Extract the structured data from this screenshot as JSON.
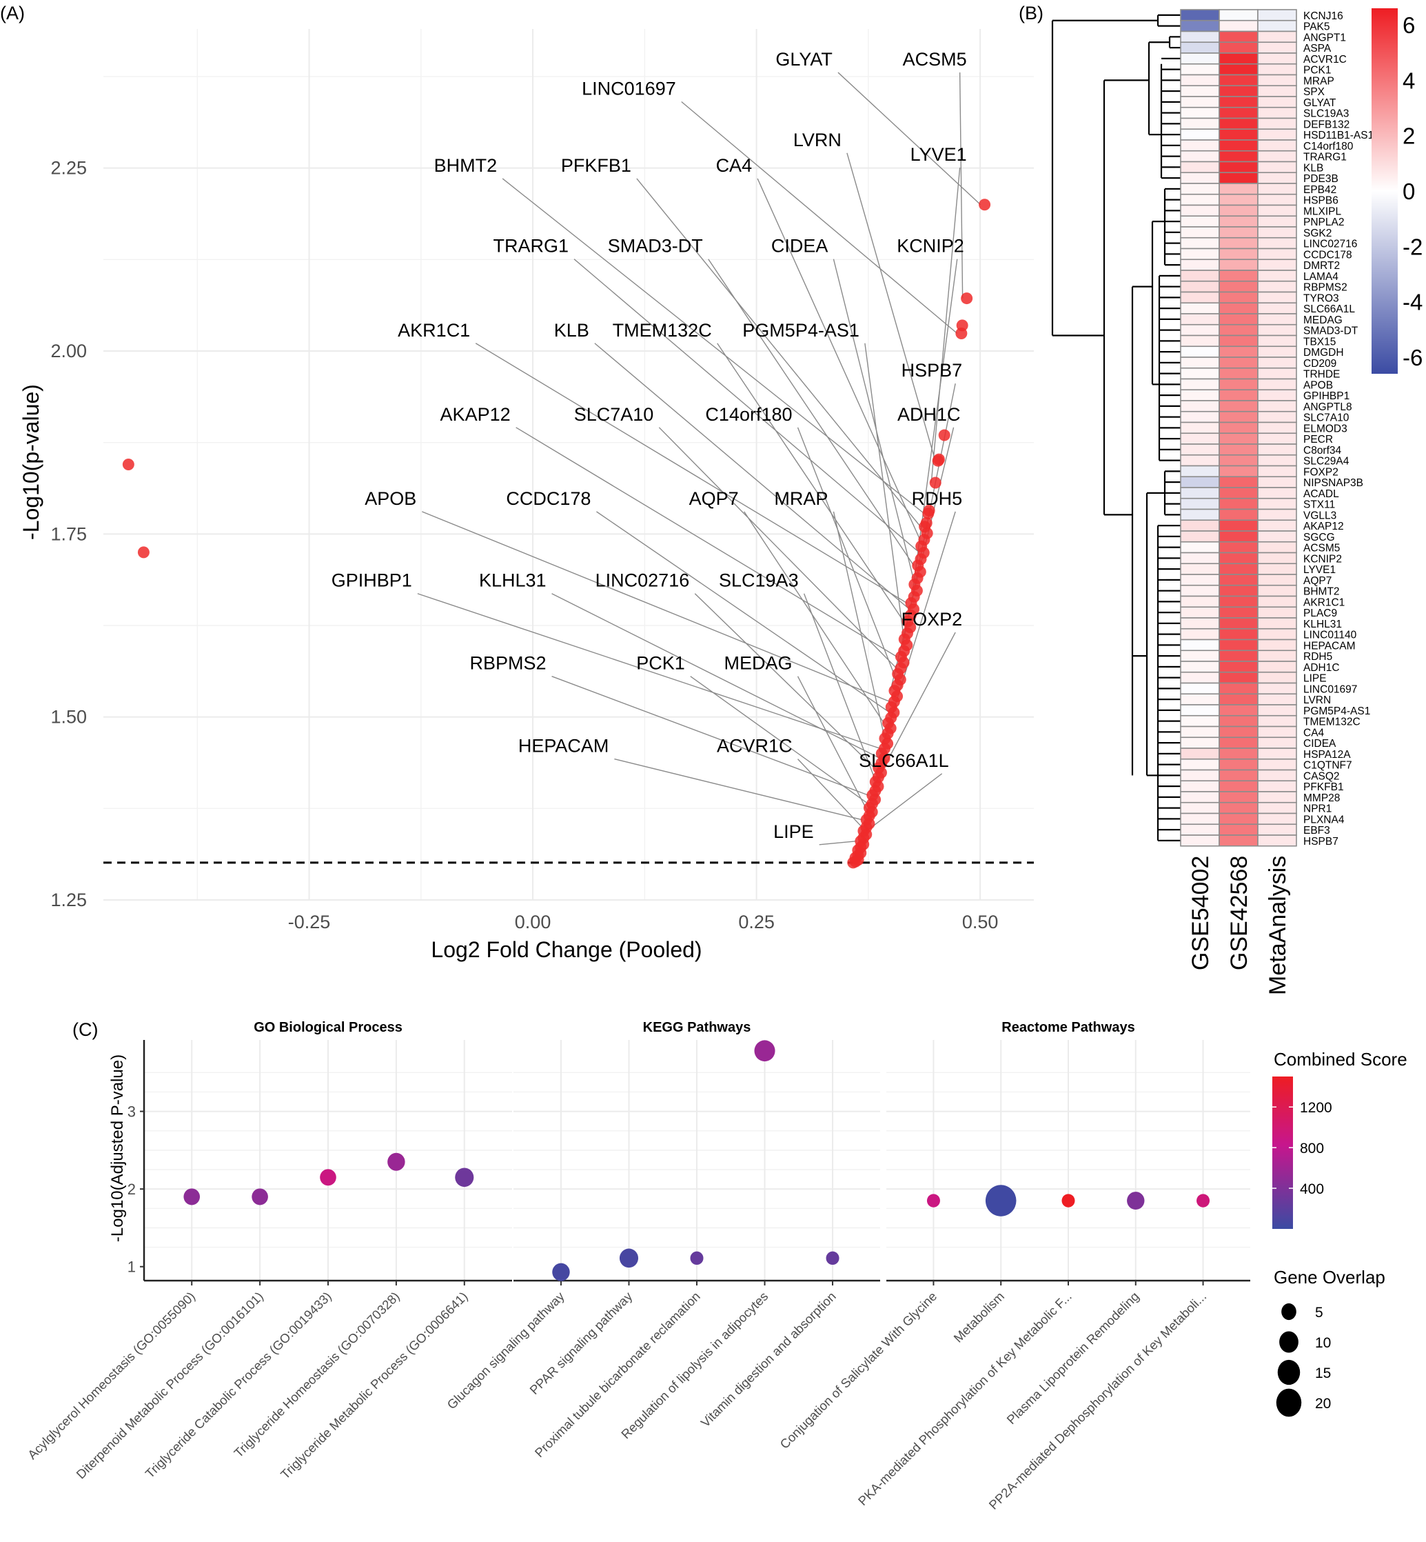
{
  "panels": {
    "A": "(A)",
    "B": "(B)",
    "C": "(C)"
  },
  "chart_data": [
    {
      "id": "volcano",
      "type": "scatter",
      "title": "",
      "xlabel": "Log2 Fold Change (Pooled)",
      "ylabel": "-Log10(p-value)",
      "xlim": [
        -0.48,
        0.56
      ],
      "ylim": [
        1.25,
        2.44
      ],
      "xticks": [
        "-0.25",
        "0.00",
        "0.25",
        "0.50"
      ],
      "xtick_values": [
        -0.25,
        0,
        0.25,
        0.5
      ],
      "yticks": [
        "1.25",
        "1.50",
        "1.75",
        "2.00",
        "2.25"
      ],
      "ytick_values": [
        1.25,
        1.5,
        1.75,
        2.0,
        2.25
      ],
      "threshold_y": 1.301,
      "grid": true,
      "point_color": "#EE2A2A",
      "points_outliers": [
        [
          -0.452,
          1.845
        ],
        [
          -0.435,
          1.725
        ]
      ],
      "points_top": [
        [
          0.505,
          2.2
        ],
        [
          0.485,
          2.072
        ],
        [
          0.48,
          2.035
        ],
        [
          0.479,
          2.024
        ],
        [
          0.46,
          1.885
        ],
        [
          0.454,
          1.852
        ],
        [
          0.453,
          1.85
        ],
        [
          0.45,
          1.82
        ],
        [
          0.443,
          1.782
        ],
        [
          0.442,
          1.778
        ],
        [
          0.44,
          1.765
        ]
      ],
      "trend": {
        "x_start": 0.36,
        "y_start": 1.301,
        "x_end": 0.44,
        "y_end": 1.76,
        "n": 70
      },
      "labels": [
        {
          "gene": "GLYAT",
          "lx": 0.335,
          "ly": 2.39
        },
        {
          "gene": "ACSM5",
          "lx": 0.485,
          "ly": 2.39
        },
        {
          "gene": "LINC01697",
          "lx": 0.16,
          "ly": 2.35
        },
        {
          "gene": "LVRN",
          "lx": 0.345,
          "ly": 2.28
        },
        {
          "gene": "LYVE1",
          "lx": 0.485,
          "ly": 2.26
        },
        {
          "gene": "BHMT2",
          "lx": -0.04,
          "ly": 2.245
        },
        {
          "gene": "PFKFB1",
          "lx": 0.11,
          "ly": 2.245
        },
        {
          "gene": "CA4",
          "lx": 0.245,
          "ly": 2.245
        },
        {
          "gene": "TRARG1",
          "lx": 0.04,
          "ly": 2.135
        },
        {
          "gene": "SMAD3-DT",
          "lx": 0.19,
          "ly": 2.135
        },
        {
          "gene": "CIDEA",
          "lx": 0.33,
          "ly": 2.135
        },
        {
          "gene": "KCNIP2",
          "lx": 0.482,
          "ly": 2.135
        },
        {
          "gene": "AKR1C1",
          "lx": -0.07,
          "ly": 2.02
        },
        {
          "gene": "KLB",
          "lx": 0.063,
          "ly": 2.02
        },
        {
          "gene": "TMEM132C",
          "lx": 0.2,
          "ly": 2.02
        },
        {
          "gene": "PGM5P4-AS1",
          "lx": 0.365,
          "ly": 2.02
        },
        {
          "gene": "HSPB7",
          "lx": 0.48,
          "ly": 1.965
        },
        {
          "gene": "AKAP12",
          "lx": -0.025,
          "ly": 1.905
        },
        {
          "gene": "SLC7A10",
          "lx": 0.135,
          "ly": 1.905
        },
        {
          "gene": "C14orf180",
          "lx": 0.29,
          "ly": 1.905
        },
        {
          "gene": "ADH1C",
          "lx": 0.478,
          "ly": 1.905
        },
        {
          "gene": "APOB",
          "lx": -0.13,
          "ly": 1.79
        },
        {
          "gene": "CCDC178",
          "lx": 0.065,
          "ly": 1.79
        },
        {
          "gene": "AQP7",
          "lx": 0.23,
          "ly": 1.79
        },
        {
          "gene": "MRAP",
          "lx": 0.33,
          "ly": 1.79
        },
        {
          "gene": "RDH5",
          "lx": 0.48,
          "ly": 1.79
        },
        {
          "gene": "GPIHBP1",
          "lx": -0.135,
          "ly": 1.678
        },
        {
          "gene": "KLHL31",
          "lx": 0.015,
          "ly": 1.678
        },
        {
          "gene": "LINC02716",
          "lx": 0.175,
          "ly": 1.678
        },
        {
          "gene": "SLC19A3",
          "lx": 0.297,
          "ly": 1.678
        },
        {
          "gene": "FOXP2",
          "lx": 0.48,
          "ly": 1.625
        },
        {
          "gene": "RBPMS2",
          "lx": 0.015,
          "ly": 1.565
        },
        {
          "gene": "PCK1",
          "lx": 0.17,
          "ly": 1.565
        },
        {
          "gene": "MEDAG",
          "lx": 0.29,
          "ly": 1.565
        },
        {
          "gene": "HEPACAM",
          "lx": 0.085,
          "ly": 1.452
        },
        {
          "gene": "ACVR1C",
          "lx": 0.29,
          "ly": 1.452
        },
        {
          "gene": "SLC66A1L",
          "lx": 0.465,
          "ly": 1.432
        },
        {
          "gene": "LIPE",
          "lx": 0.314,
          "ly": 1.335
        }
      ]
    },
    {
      "id": "heatmap",
      "type": "heatmap",
      "columns": [
        "GSE54002",
        "GSE42568",
        "MetaAnalysis"
      ],
      "rows": [
        "KCNJ16",
        "PAK5",
        "ANGPT1",
        "ASPA",
        "ACVR1C",
        "PCK1",
        "MRAP",
        "SPX",
        "GLYAT",
        "SLC19A3",
        "DEFB132",
        "HSD11B1-AS1",
        "C14orf180",
        "TRARG1",
        "KLB",
        "PDE3B",
        "EPB42",
        "HSPB6",
        "MLXIPL",
        "PNPLA2",
        "SGK2",
        "LINC02716",
        "CCDC178",
        "DMRT2",
        "LAMA4",
        "RBPMS2",
        "TYRO3",
        "SLC66A1L",
        "MEDAG",
        "SMAD3-DT",
        "TBX15",
        "DMGDH",
        "CD209",
        "TRHDE",
        "APOB",
        "GPIHBP1",
        "ANGPTL8",
        "SLC7A10",
        "ELMOD3",
        "PECR",
        "C8orf34",
        "SLC29A4",
        "FOXP2",
        "NIPSNAP3B",
        "ACADL",
        "STX11",
        "VGLL3",
        "AKAP12",
        "SGCG",
        "ACSM5",
        "KCNIP2",
        "LYVE1",
        "AQP7",
        "BHMT2",
        "AKR1C1",
        "PLAC9",
        "KLHL31",
        "LINC01140",
        "HEPACAM",
        "RDH5",
        "ADH1C",
        "LIPE",
        "LINC01697",
        "LVRN",
        "PGM5P4-AS1",
        "TMEM132C",
        "CA4",
        "CIDEA",
        "HSPA12A",
        "C1QTNF7",
        "CASQ2",
        "PFKFB1",
        "MMP28",
        "NPR1",
        "PLXNA4",
        "EBF3",
        "HSPB7"
      ],
      "values": [
        [
          -5.5,
          -0.2,
          -0.6
        ],
        [
          -4.5,
          0.4,
          -0.6
        ],
        [
          -0.8,
          5.0,
          0.7
        ],
        [
          -1.3,
          5.0,
          0.7
        ],
        [
          -0.3,
          6.2,
          0.7
        ],
        [
          0.2,
          6.2,
          0.7
        ],
        [
          0.4,
          5.7,
          0.7
        ],
        [
          0.3,
          5.8,
          0.7
        ],
        [
          0.3,
          5.8,
          0.7
        ],
        [
          0.2,
          5.8,
          0.7
        ],
        [
          0.3,
          6.0,
          0.7
        ],
        [
          -0.1,
          6.0,
          0.7
        ],
        [
          0.4,
          6.0,
          0.7
        ],
        [
          0.4,
          6.0,
          0.7
        ],
        [
          0.7,
          6.1,
          0.7
        ],
        [
          0.4,
          6.2,
          0.7
        ],
        [
          0.3,
          2.0,
          0.7
        ],
        [
          0.3,
          2.0,
          0.7
        ],
        [
          0.4,
          2.2,
          0.7
        ],
        [
          0.3,
          2.2,
          0.7
        ],
        [
          0.3,
          2.2,
          0.7
        ],
        [
          0.3,
          2.3,
          0.7
        ],
        [
          0.3,
          2.3,
          0.7
        ],
        [
          0.4,
          2.3,
          0.7
        ],
        [
          1.0,
          3.6,
          0.7
        ],
        [
          1.0,
          3.8,
          0.7
        ],
        [
          0.9,
          3.8,
          0.7
        ],
        [
          0.3,
          3.9,
          0.7
        ],
        [
          0.6,
          3.9,
          0.7
        ],
        [
          0.4,
          3.8,
          0.7
        ],
        [
          0.5,
          3.9,
          0.7
        ],
        [
          -0.1,
          3.5,
          0.7
        ],
        [
          0.3,
          3.6,
          0.7
        ],
        [
          0.2,
          3.6,
          0.7
        ],
        [
          0.3,
          3.6,
          0.7
        ],
        [
          0.3,
          3.6,
          0.7
        ],
        [
          0.4,
          3.5,
          0.7
        ],
        [
          0.4,
          3.5,
          0.7
        ],
        [
          0.5,
          3.5,
          0.7
        ],
        [
          0.6,
          3.4,
          0.7
        ],
        [
          0.6,
          3.4,
          0.7
        ],
        [
          0.6,
          3.4,
          0.7
        ],
        [
          -0.7,
          3.3,
          0.7
        ],
        [
          -1.6,
          4.4,
          0.7
        ],
        [
          -0.8,
          4.4,
          0.7
        ],
        [
          -0.8,
          4.4,
          0.7
        ],
        [
          -0.7,
          4.3,
          0.7
        ],
        [
          1.0,
          5.2,
          0.7
        ],
        [
          0.9,
          5.2,
          0.7
        ],
        [
          0.2,
          4.8,
          0.8
        ],
        [
          0.4,
          4.9,
          0.8
        ],
        [
          0.5,
          4.9,
          0.8
        ],
        [
          0.4,
          4.9,
          0.8
        ],
        [
          0.4,
          5.0,
          0.8
        ],
        [
          0.5,
          5.0,
          0.8
        ],
        [
          0.5,
          5.0,
          0.8
        ],
        [
          0.5,
          5.1,
          0.8
        ],
        [
          0.5,
          5.2,
          0.8
        ],
        [
          -0.1,
          5.2,
          0.8
        ],
        [
          0.3,
          5.1,
          0.8
        ],
        [
          0.3,
          5.1,
          0.8
        ],
        [
          0.4,
          5.2,
          0.8
        ],
        [
          -0.1,
          4.5,
          0.7
        ],
        [
          0.3,
          4.5,
          0.7
        ],
        [
          -0.1,
          4.0,
          0.7
        ],
        [
          0.2,
          4.1,
          0.7
        ],
        [
          0.3,
          4.1,
          0.7
        ],
        [
          0.3,
          4.2,
          0.7
        ],
        [
          1.0,
          3.9,
          0.7
        ],
        [
          0.3,
          3.9,
          0.7
        ],
        [
          0.4,
          3.9,
          0.7
        ],
        [
          0.4,
          4.0,
          0.7
        ],
        [
          0.4,
          3.9,
          0.7
        ],
        [
          0.4,
          3.9,
          0.7
        ],
        [
          0.4,
          3.9,
          0.7
        ],
        [
          0.4,
          3.9,
          0.7
        ],
        [
          0.4,
          3.8,
          0.7
        ]
      ],
      "colorbar": {
        "ticks": [
          "6",
          "4",
          "2",
          "0",
          "-2",
          "-4",
          "-6"
        ],
        "tick_values": [
          6,
          4,
          2,
          0,
          -2,
          -4,
          -6
        ],
        "low": "#3B4BA3",
        "mid": "#FFFFFF",
        "high": "#EE1D23",
        "range": [
          -6.6,
          6.6
        ]
      }
    },
    {
      "id": "enrichment",
      "type": "scatter",
      "ylabel": "-Log10(Adjusted P-value)",
      "ylim": [
        0.82,
        3.92
      ],
      "yticks": [
        "1",
        "2",
        "3"
      ],
      "ytick_values": [
        1,
        2,
        3
      ],
      "facets": [
        {
          "title": "GO Biological Process",
          "categories": [
            "Acylglycerol Homeostasis (GO:0055090)",
            "Diterpenoid Metabolic Process (GO:0016101)",
            "Triglyceride Catabolic Process (GO:0019433)",
            "Triglyceride Homeostasis (GO:0070328)",
            "Triglyceride Metabolic Process (GO:0006641)"
          ],
          "values": [
            1.9,
            1.9,
            2.15,
            2.35,
            2.15
          ],
          "scores": [
            480,
            480,
            900,
            560,
            300
          ],
          "overlap": [
            4,
            4,
            4,
            5,
            6
          ]
        },
        {
          "title": "KEGG Pathways",
          "categories": [
            "Glucagon signaling pathway",
            "PPAR signaling pathway",
            "Proximal tubule bicarbonate reclamation",
            "Regulation of lipolysis in adipocytes",
            "Vitamin digestion and absorption"
          ],
          "values": [
            0.93,
            1.11,
            1.11,
            3.78,
            1.11
          ],
          "scores": [
            60,
            80,
            250,
            560,
            250
          ],
          "overlap": [
            5,
            6,
            2,
            8,
            2
          ]
        },
        {
          "title": "Reactome Pathways",
          "categories": [
            "Conjugation of Salicylate With Glycine",
            "Metabolism",
            "PKA-mediated Phosphorylation of Key Metabolic F...",
            "Plasma Lipoprotein Remodeling",
            "PP2A-mediated Dephosphorylation of Key Metaboli..."
          ],
          "values": [
            1.85,
            1.85,
            1.85,
            1.85,
            1.85
          ],
          "scores": [
            900,
            30,
            1500,
            400,
            950
          ],
          "overlap": [
            2,
            22,
            2,
            5,
            2
          ]
        }
      ],
      "color_legend": {
        "title": "Combined Score",
        "ticks": [
          "1200",
          "800",
          "400"
        ],
        "tick_values": [
          1200,
          800,
          400
        ],
        "range": [
          0,
          1500
        ],
        "low": "#3B4BA3",
        "mid": "#C6168D",
        "high": "#EE1D23"
      },
      "size_legend": {
        "title": "Gene Overlap",
        "ticks": [
          "5",
          "10",
          "15",
          "20"
        ],
        "tick_values": [
          5,
          10,
          15,
          20
        ]
      }
    }
  ]
}
